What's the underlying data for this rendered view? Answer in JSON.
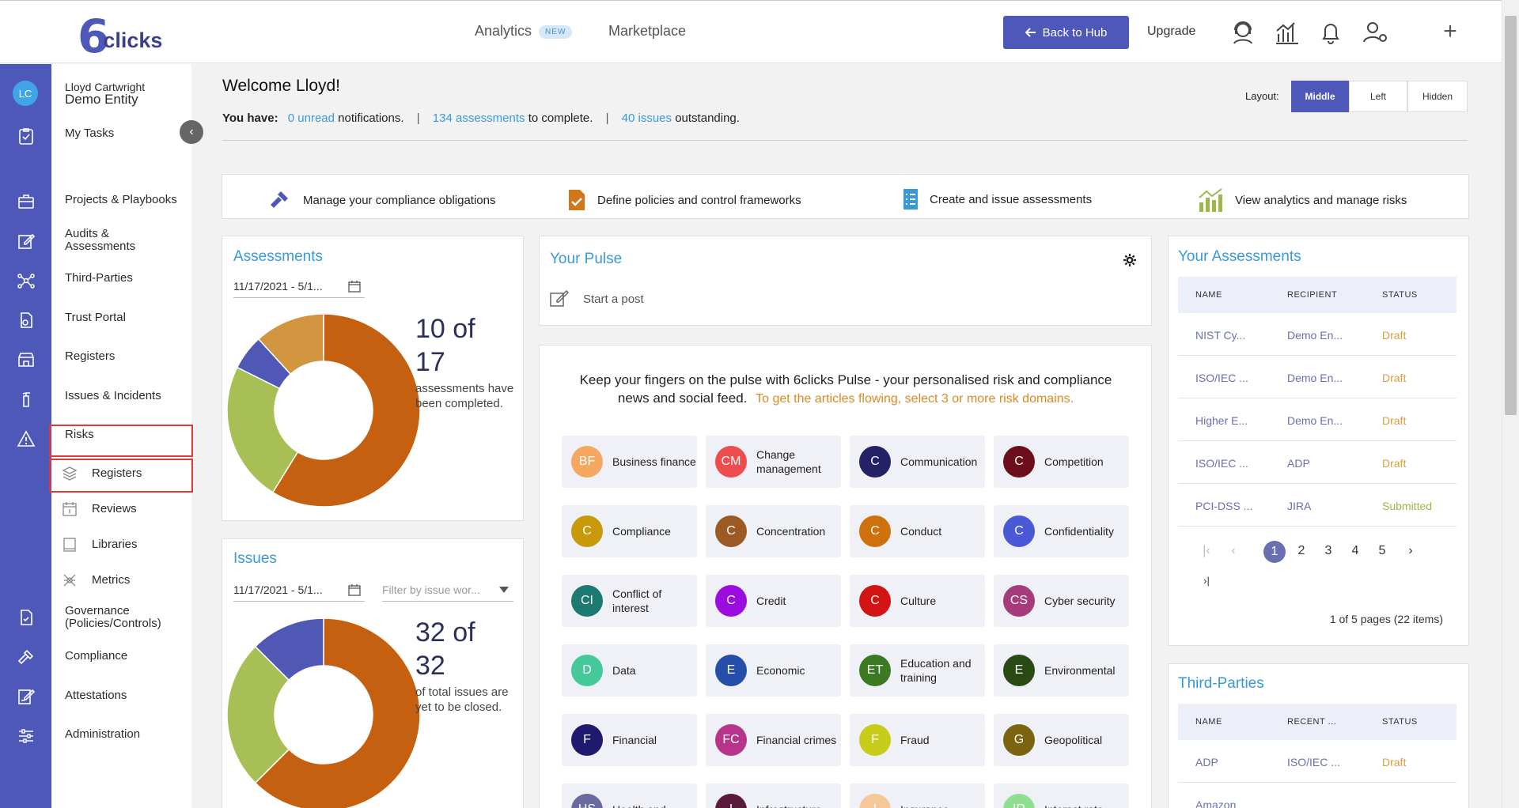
{
  "header": {
    "logo_six": "6",
    "logo_word": "clicks",
    "nav": [
      {
        "label": "Analytics",
        "badge": "NEW"
      },
      {
        "label": "Marketplace"
      }
    ],
    "back_to_hub": "Back to Hub",
    "upgrade": "Upgrade",
    "plus": "+"
  },
  "user": {
    "initials": "LC",
    "name": "Lloyd Cartwright",
    "entity": "Demo Entity"
  },
  "nav": {
    "my_tasks": "My Tasks",
    "projects": "Projects & Playbooks",
    "audits": "Audits & Assessments",
    "third_parties": "Third-Parties",
    "trust_portal": "Trust Portal",
    "registers": "Registers",
    "issues": "Issues & Incidents",
    "risks": "Risks",
    "risks_registers": "Registers",
    "reviews": "Reviews",
    "libraries": "Libraries",
    "metrics": "Metrics",
    "governance": "Governance (Policies/Controls)",
    "compliance": "Compliance",
    "attestations": "Attestations",
    "administration": "Administration",
    "collapse": "‹"
  },
  "welcome": {
    "title": "Welcome Lloyd!",
    "prefix": "You have:",
    "unread": "0 unread",
    "notifications": "notifications.",
    "assessments": "134 assessments",
    "to_complete": "to complete.",
    "issues": "40 issues",
    "outstanding": "outstanding.",
    "separator": "|"
  },
  "layout": {
    "label": "Layout:",
    "options": [
      "Middle",
      "Left",
      "Hidden"
    ],
    "selected": "Middle"
  },
  "actions": [
    "Manage your compliance obligations",
    "Define policies and control frameworks",
    "Create and issue assessments",
    "View analytics and manage risks"
  ],
  "assessments_card": {
    "title": "Assessments",
    "date_range": "11/17/2021 - 5/1...",
    "count_line1": "10 of",
    "count_line2": "17",
    "caption": "assessments have been completed.",
    "segments": [
      {
        "value": 10,
        "color": "#c4600f"
      },
      {
        "value": 4,
        "color": "#a8bf55"
      },
      {
        "value": 1,
        "color": "#5058b5"
      },
      {
        "value": 2,
        "color": "#d1963f"
      }
    ]
  },
  "issues_card": {
    "title": "Issues",
    "date_range": "11/17/2021 - 5/1...",
    "filter_placeholder": "Filter by issue wor...",
    "count_line1": "32 of",
    "count_line2": "32",
    "caption": "of total issues are yet to be closed.",
    "segments": [
      {
        "value": 20,
        "color": "#c4600f"
      },
      {
        "value": 8,
        "color": "#a8bf55"
      },
      {
        "value": 4,
        "color": "#5058b5"
      }
    ]
  },
  "pulse": {
    "title": "Your Pulse",
    "start_post": "Start a post",
    "intro_main": "Keep your fingers on the pulse with 6clicks Pulse - your personalised risk and compliance news and social feed.",
    "intro_cta": "To get the articles flowing, select 3 or more risk domains.",
    "chips": [
      {
        "initials": "BF",
        "label": "Business finance",
        "color": "#f5a862"
      },
      {
        "initials": "CM",
        "label": "Change management",
        "color": "#ef4d4d"
      },
      {
        "initials": "C",
        "label": "Communication",
        "color": "#252166"
      },
      {
        "initials": "C",
        "label": "Competition",
        "color": "#6b0f1a"
      },
      {
        "initials": "C",
        "label": "Compliance",
        "color": "#c89a0a"
      },
      {
        "initials": "C",
        "label": "Concentration",
        "color": "#9b5a23"
      },
      {
        "initials": "C",
        "label": "Conduct",
        "color": "#d0700c"
      },
      {
        "initials": "C",
        "label": "Confidentiality",
        "color": "#4a59d6"
      },
      {
        "initials": "CI",
        "label": "Conflict of interest",
        "color": "#1c7a72"
      },
      {
        "initials": "C",
        "label": "Credit",
        "color": "#9a0dde"
      },
      {
        "initials": "C",
        "label": "Culture",
        "color": "#d21414"
      },
      {
        "initials": "CS",
        "label": "Cyber security",
        "color": "#a63a7a"
      },
      {
        "initials": "D",
        "label": "Data",
        "color": "#45c99a"
      },
      {
        "initials": "E",
        "label": "Economic",
        "color": "#244ea8"
      },
      {
        "initials": "ET",
        "label": "Education and training",
        "color": "#3c7a22"
      },
      {
        "initials": "E",
        "label": "Environmental",
        "color": "#2a4a14"
      },
      {
        "initials": "F",
        "label": "Financial",
        "color": "#1f1a6e"
      },
      {
        "initials": "FC",
        "label": "Financial crimes",
        "color": "#b8348a"
      },
      {
        "initials": "F",
        "label": "Fraud",
        "color": "#c8cc1a"
      },
      {
        "initials": "G",
        "label": "Geopolitical",
        "color": "#7a6410"
      },
      {
        "initials": "HS",
        "label": "Health and",
        "color": "#6a6aa0"
      },
      {
        "initials": "I",
        "label": "Infrastructure",
        "color": "#5a1a3a"
      },
      {
        "initials": "I",
        "label": "Insurance",
        "color": "#f5c89a"
      },
      {
        "initials": "IR",
        "label": "Interest rate",
        "color": "#8ee08e"
      }
    ]
  },
  "your_assessments": {
    "title": "Your Assessments",
    "columns": [
      "NAME",
      "RECIPIENT",
      "STATUS"
    ],
    "rows": [
      {
        "name": "NIST Cy...",
        "recipient": "Demo En...",
        "status": "Draft"
      },
      {
        "name": "ISO/IEC ...",
        "recipient": "Demo En...",
        "status": "Draft"
      },
      {
        "name": "Higher E...",
        "recipient": "Demo En...",
        "status": "Draft"
      },
      {
        "name": "ISO/IEC ...",
        "recipient": "ADP",
        "status": "Draft"
      },
      {
        "name": "PCI-DSS ...",
        "recipient": "JIRA",
        "status": "Submitted"
      }
    ],
    "pager": {
      "first": "|‹",
      "prev": "‹",
      "pages": [
        "1",
        "2",
        "3",
        "4",
        "5"
      ],
      "next": "›",
      "last": "›|",
      "summary": "1 of 5 pages (22 items)"
    }
  },
  "third_parties": {
    "title": "Third-Parties",
    "columns": [
      "NAME",
      "RECENT ...",
      "STATUS"
    ],
    "rows": [
      {
        "name": "ADP",
        "recent": "ISO/IEC ...",
        "status": "Draft"
      },
      {
        "name": "Amazon",
        "recent": "",
        "status": ""
      }
    ]
  },
  "colors": {
    "brand": "#4e58b8",
    "link": "#3a9ad9",
    "draft": "#d8a040",
    "submitted": "#9cb84a"
  }
}
